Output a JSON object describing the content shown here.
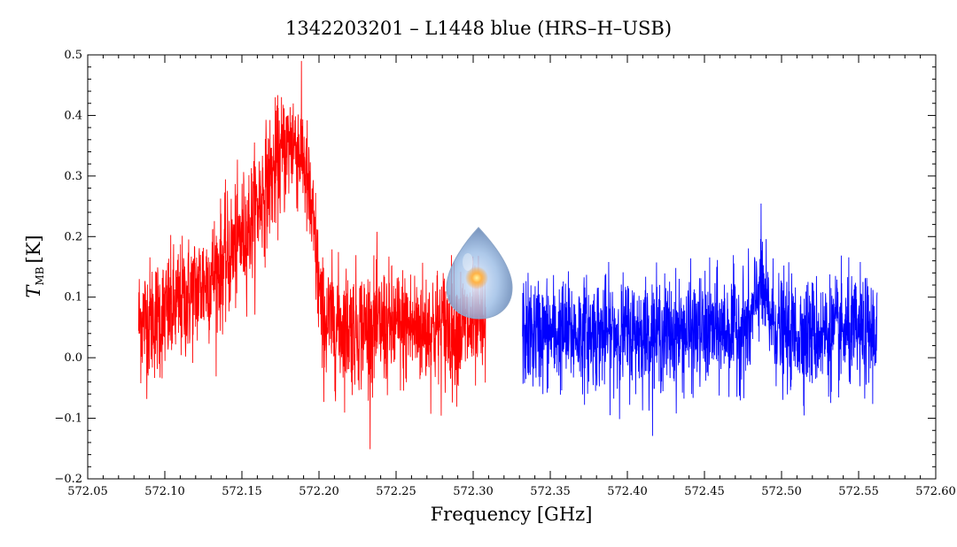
{
  "chart_data": {
    "type": "line",
    "title": "1342203201 – L1448 blue (HRS–H–USB)",
    "xlabel": "Frequency [GHz]",
    "ylabel": {
      "symbol": "T",
      "subscript": "MB",
      "unit": "[K]"
    },
    "xlim": [
      572.05,
      572.6
    ],
    "ylim": [
      -0.2,
      0.5
    ],
    "x_ticks": [
      "572.05",
      "572.10",
      "572.15",
      "572.20",
      "572.25",
      "572.30",
      "572.35",
      "572.40",
      "572.45",
      "572.50",
      "572.55",
      "572.60"
    ],
    "y_ticks": [
      "−0.2",
      "−0.1",
      "0.0",
      "0.1",
      "0.2",
      "0.3",
      "0.4",
      "0.5"
    ],
    "grid": false,
    "series": [
      {
        "color": "#ff0000",
        "x_range": [
          572.083,
          572.308
        ],
        "noise_rms": 0.05,
        "profile": [
          [
            572.083,
            0.06
          ],
          [
            572.1,
            0.07
          ],
          [
            572.12,
            0.11
          ],
          [
            572.14,
            0.16
          ],
          [
            572.155,
            0.22
          ],
          [
            572.165,
            0.28
          ],
          [
            572.175,
            0.33
          ],
          [
            572.183,
            0.36
          ],
          [
            572.19,
            0.33
          ],
          [
            572.197,
            0.2
          ],
          [
            572.202,
            0.06
          ],
          [
            572.22,
            0.05
          ],
          [
            572.25,
            0.05
          ],
          [
            572.28,
            0.05
          ],
          [
            572.308,
            0.05
          ]
        ]
      },
      {
        "color": "#0000ff",
        "x_range": [
          572.332,
          572.562
        ],
        "noise_rms": 0.045,
        "profile": [
          [
            572.332,
            0.04
          ],
          [
            572.38,
            0.04
          ],
          [
            572.44,
            0.04
          ],
          [
            572.48,
            0.05
          ],
          [
            572.486,
            0.13
          ],
          [
            572.49,
            0.08
          ],
          [
            572.5,
            0.04
          ],
          [
            572.562,
            0.04
          ]
        ]
      }
    ]
  },
  "logo": {
    "name": "herschel-hipe-logo"
  }
}
